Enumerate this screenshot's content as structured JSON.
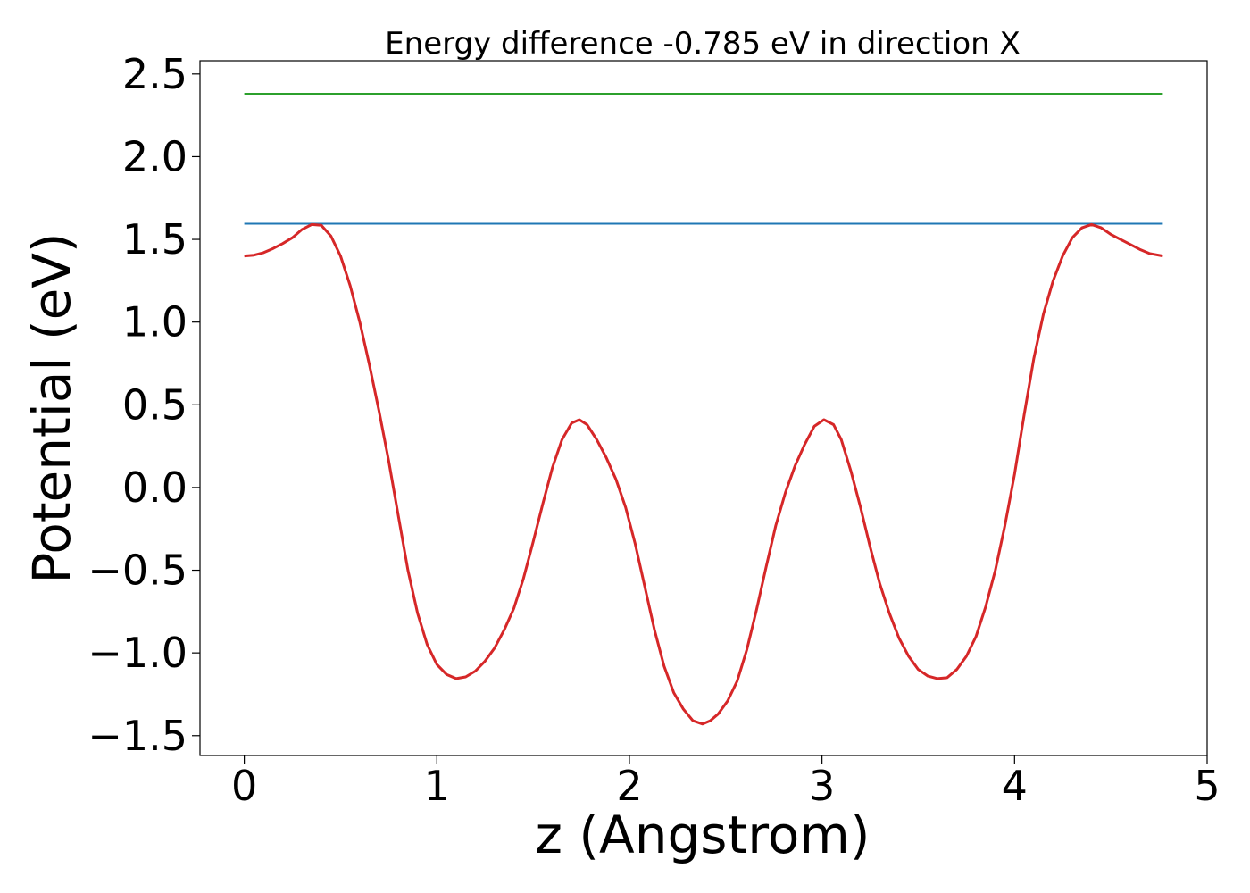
{
  "chart_data": {
    "type": "line",
    "title": "Energy difference -0.785 eV in direction X",
    "xlabel": "z (Angstrom)",
    "ylabel": "Potential (eV)",
    "xlim": [
      -0.23,
      5.0
    ],
    "ylim": [
      -1.62,
      2.58
    ],
    "xticks": [
      0,
      1,
      2,
      3,
      4,
      5
    ],
    "xtick_labels": [
      "0",
      "1",
      "2",
      "3",
      "4",
      "5"
    ],
    "yticks": [
      -1.5,
      -1.0,
      -0.5,
      0.0,
      0.5,
      1.0,
      1.5,
      2.0,
      2.5
    ],
    "ytick_labels": [
      "−1.5",
      "−1.0",
      "−0.5",
      "0.0",
      "0.5",
      "1.0",
      "1.5",
      "2.0",
      "2.5"
    ],
    "grid": false,
    "series": [
      {
        "color": "#2ca02c",
        "x": [
          0,
          4.77
        ],
        "y": [
          2.38,
          2.38
        ]
      },
      {
        "color": "#1f77b4",
        "x": [
          0,
          4.77
        ],
        "y": [
          1.595,
          1.595
        ]
      },
      {
        "color": "#d62728",
        "x": [
          0,
          0.05,
          0.1,
          0.15,
          0.2,
          0.25,
          0.3,
          0.35,
          0.4,
          0.45,
          0.5,
          0.55,
          0.6,
          0.65,
          0.7,
          0.75,
          0.8,
          0.85,
          0.9,
          0.95,
          1.0,
          1.05,
          1.1,
          1.15,
          1.2,
          1.25,
          1.3,
          1.35,
          1.4,
          1.45,
          1.5,
          1.55,
          1.6,
          1.65,
          1.7,
          1.74,
          1.78,
          1.83,
          1.88,
          1.93,
          1.98,
          2.03,
          2.08,
          2.13,
          2.18,
          2.23,
          2.28,
          2.33,
          2.38,
          2.42,
          2.46,
          2.51,
          2.56,
          2.61,
          2.66,
          2.71,
          2.76,
          2.81,
          2.86,
          2.91,
          2.96,
          3.01,
          3.06,
          3.1,
          3.15,
          3.2,
          3.25,
          3.3,
          3.35,
          3.4,
          3.45,
          3.5,
          3.55,
          3.6,
          3.65,
          3.7,
          3.75,
          3.8,
          3.85,
          3.9,
          3.95,
          4.0,
          4.05,
          4.1,
          4.15,
          4.2,
          4.25,
          4.3,
          4.35,
          4.4,
          4.45,
          4.5,
          4.55,
          4.6,
          4.65,
          4.7,
          4.77
        ],
        "y": [
          1.4,
          1.405,
          1.42,
          1.445,
          1.475,
          1.51,
          1.56,
          1.59,
          1.585,
          1.52,
          1.4,
          1.22,
          1.0,
          0.74,
          0.46,
          0.16,
          -0.17,
          -0.5,
          -0.76,
          -0.95,
          -1.07,
          -1.13,
          -1.155,
          -1.145,
          -1.11,
          -1.05,
          -0.97,
          -0.86,
          -0.73,
          -0.55,
          -0.33,
          -0.1,
          0.12,
          0.29,
          0.39,
          0.41,
          0.38,
          0.29,
          0.18,
          0.05,
          -0.12,
          -0.34,
          -0.6,
          -0.86,
          -1.08,
          -1.24,
          -1.34,
          -1.41,
          -1.43,
          -1.41,
          -1.37,
          -1.29,
          -1.17,
          -0.98,
          -0.74,
          -0.48,
          -0.23,
          -0.03,
          0.13,
          0.26,
          0.37,
          0.41,
          0.38,
          0.29,
          0.1,
          -0.12,
          -0.36,
          -0.58,
          -0.76,
          -0.91,
          -1.02,
          -1.1,
          -1.14,
          -1.155,
          -1.15,
          -1.1,
          -1.02,
          -0.9,
          -0.72,
          -0.5,
          -0.23,
          0.08,
          0.44,
          0.78,
          1.05,
          1.25,
          1.4,
          1.51,
          1.57,
          1.59,
          1.57,
          1.53,
          1.5,
          1.47,
          1.44,
          1.415,
          1.4
        ]
      }
    ]
  }
}
